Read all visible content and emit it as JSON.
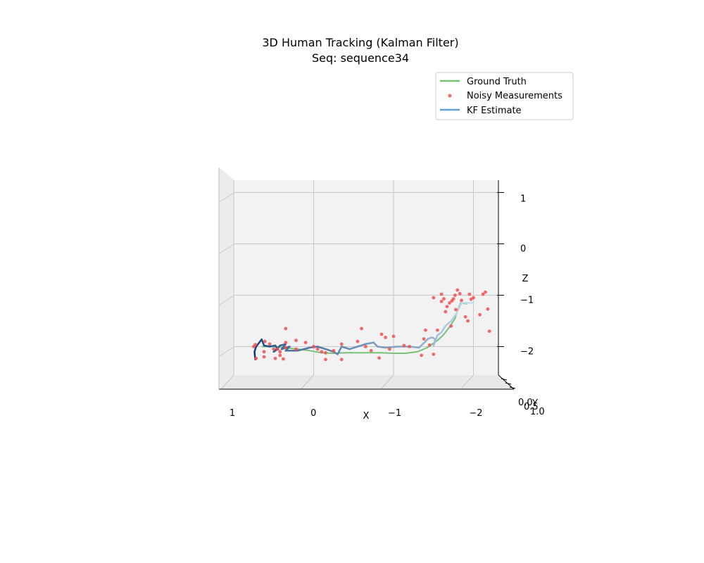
{
  "chart_data": {
    "type": "3d-line-scatter",
    "title": "3D Human Tracking (Kalman Filter)",
    "subtitle": "Seq: sequence34",
    "xlabel": "X",
    "ylabel": "Y",
    "zlabel": "Z",
    "xlim": [
      1.3,
      -2.3
    ],
    "zlim": [
      -2.6,
      1.3
    ],
    "x_ticks": [
      1,
      0,
      -1,
      -2
    ],
    "z_ticks": [
      1,
      0,
      -1,
      -2
    ],
    "y_tick_labels": [
      "0.0",
      "0.5",
      "1.0"
    ],
    "x_tick_text": [
      "1",
      "0",
      "−1",
      "−2"
    ],
    "z_tick_text": [
      "1",
      "0",
      "−1",
      "−2"
    ],
    "grid": true,
    "legend_position": "top-right",
    "series": [
      {
        "name": "Ground Truth",
        "kind": "line",
        "color": "#77c277",
        "points": [
          [
            0.65,
            -2.0
          ],
          [
            0.5,
            -2.0
          ],
          [
            0.35,
            -2.02
          ],
          [
            0.2,
            -2.05
          ],
          [
            0.05,
            -2.08
          ],
          [
            -0.1,
            -2.12
          ],
          [
            -0.25,
            -2.13
          ],
          [
            -0.4,
            -2.12
          ],
          [
            -0.55,
            -2.12
          ],
          [
            -0.7,
            -2.12
          ],
          [
            -0.85,
            -2.12
          ],
          [
            -1.0,
            -2.13
          ],
          [
            -1.15,
            -2.13
          ],
          [
            -1.3,
            -2.1
          ],
          [
            -1.42,
            -2.02
          ],
          [
            -1.55,
            -1.88
          ],
          [
            -1.62,
            -1.78
          ],
          [
            -1.7,
            -1.62
          ],
          [
            -1.77,
            -1.45
          ],
          [
            -1.8,
            -1.3
          ],
          [
            -1.84,
            -1.15
          ],
          [
            -1.92,
            -1.17
          ]
        ]
      },
      {
        "name": "Noisy Measurements",
        "kind": "scatter",
        "color": "#f0504f",
        "points": [
          [
            0.75,
            -2.0
          ],
          [
            0.73,
            -1.96
          ],
          [
            0.72,
            -2.23
          ],
          [
            0.62,
            -2.1
          ],
          [
            0.62,
            -2.2
          ],
          [
            0.61,
            -1.9
          ],
          [
            0.55,
            -1.95
          ],
          [
            0.5,
            -2.05
          ],
          [
            0.48,
            -2.23
          ],
          [
            0.45,
            -2.05
          ],
          [
            0.42,
            -2.1
          ],
          [
            0.42,
            -2.17
          ],
          [
            0.38,
            -2.24
          ],
          [
            0.35,
            -1.92
          ],
          [
            0.35,
            -2.02
          ],
          [
            0.35,
            -1.65
          ],
          [
            0.22,
            -2.05
          ],
          [
            0.22,
            -1.88
          ],
          [
            0.1,
            -1.92
          ],
          [
            0.0,
            -2.0
          ],
          [
            -0.05,
            -2.05
          ],
          [
            -0.1,
            -2.1
          ],
          [
            -0.15,
            -2.12
          ],
          [
            -0.15,
            -2.25
          ],
          [
            -0.25,
            -2.08
          ],
          [
            -0.35,
            -2.25
          ],
          [
            -0.35,
            -1.95
          ],
          [
            -0.6,
            -1.65
          ],
          [
            -0.55,
            -1.9
          ],
          [
            -0.65,
            -2.0
          ],
          [
            -0.72,
            -2.08
          ],
          [
            -0.82,
            -2.22
          ],
          [
            -0.85,
            -1.76
          ],
          [
            -0.9,
            -1.82
          ],
          [
            -0.95,
            -2.05
          ],
          [
            -1.0,
            -1.8
          ],
          [
            -1.13,
            -1.98
          ],
          [
            -1.2,
            -2.0
          ],
          [
            -1.35,
            -2.17
          ],
          [
            -1.4,
            -1.68
          ],
          [
            -1.38,
            -1.85
          ],
          [
            -1.45,
            -1.97
          ],
          [
            -1.5,
            -2.15
          ],
          [
            -1.5,
            -1.05
          ],
          [
            -1.55,
            -1.68
          ],
          [
            -1.6,
            -1.12
          ],
          [
            -1.6,
            -0.98
          ],
          [
            -1.63,
            -1.07
          ],
          [
            -1.65,
            -1.32
          ],
          [
            -1.67,
            -1.22
          ],
          [
            -1.7,
            -1.15
          ],
          [
            -1.72,
            -1.6
          ],
          [
            -1.73,
            -1.11
          ],
          [
            -1.75,
            -1.07
          ],
          [
            -1.77,
            -1.0
          ],
          [
            -1.78,
            -1.28
          ],
          [
            -1.8,
            -0.9
          ],
          [
            -1.83,
            -0.97
          ],
          [
            -1.85,
            -1.1
          ],
          [
            -1.9,
            -1.42
          ],
          [
            -1.93,
            -1.5
          ],
          [
            -1.95,
            -0.98
          ],
          [
            -1.97,
            -1.08
          ],
          [
            -2.0,
            -1.05
          ],
          [
            -2.08,
            -1.38
          ],
          [
            -2.12,
            -0.98
          ],
          [
            -2.15,
            -0.94
          ],
          [
            -2.18,
            -1.27
          ],
          [
            -2.2,
            -1.7
          ]
        ]
      },
      {
        "name": "KF Estimate",
        "kind": "line",
        "color": "#5fa2d4",
        "color_start": "#0d3f7e",
        "color_end": "#c6dbef",
        "points": [
          [
            0.73,
            -2.25
          ],
          [
            0.74,
            -2.1
          ],
          [
            0.72,
            -2.0
          ],
          [
            0.68,
            -1.92
          ],
          [
            0.65,
            -1.86
          ],
          [
            0.62,
            -1.98
          ],
          [
            0.55,
            -2.0
          ],
          [
            0.48,
            -1.98
          ],
          [
            0.45,
            -2.05
          ],
          [
            0.5,
            -2.1
          ],
          [
            0.42,
            -1.98
          ],
          [
            0.35,
            -1.95
          ],
          [
            0.4,
            -2.05
          ],
          [
            0.3,
            -2.0
          ],
          [
            0.35,
            -2.08
          ],
          [
            0.2,
            -2.08
          ],
          [
            0.05,
            -2.02
          ],
          [
            -0.05,
            -2.0
          ],
          [
            -0.15,
            -2.05
          ],
          [
            -0.25,
            -2.1
          ],
          [
            -0.3,
            -2.15
          ],
          [
            -0.35,
            -2.0
          ],
          [
            -0.45,
            -2.05
          ],
          [
            -0.55,
            -2.0
          ],
          [
            -0.65,
            -1.95
          ],
          [
            -0.75,
            -1.92
          ],
          [
            -0.8,
            -2.0
          ],
          [
            -0.9,
            -2.02
          ],
          [
            -1.05,
            -2.0
          ],
          [
            -1.2,
            -2.0
          ],
          [
            -1.32,
            -2.02
          ],
          [
            -1.38,
            -1.93
          ],
          [
            -1.43,
            -1.85
          ],
          [
            -1.48,
            -1.82
          ],
          [
            -1.52,
            -1.85
          ],
          [
            -1.5,
            -1.98
          ],
          [
            -1.55,
            -1.78
          ],
          [
            -1.6,
            -1.72
          ],
          [
            -1.65,
            -1.6
          ],
          [
            -1.72,
            -1.5
          ],
          [
            -1.78,
            -1.38
          ],
          [
            -1.82,
            -1.25
          ],
          [
            -1.85,
            -1.15
          ],
          [
            -1.92,
            -1.15
          ],
          [
            -2.0,
            -1.15
          ]
        ]
      }
    ]
  }
}
